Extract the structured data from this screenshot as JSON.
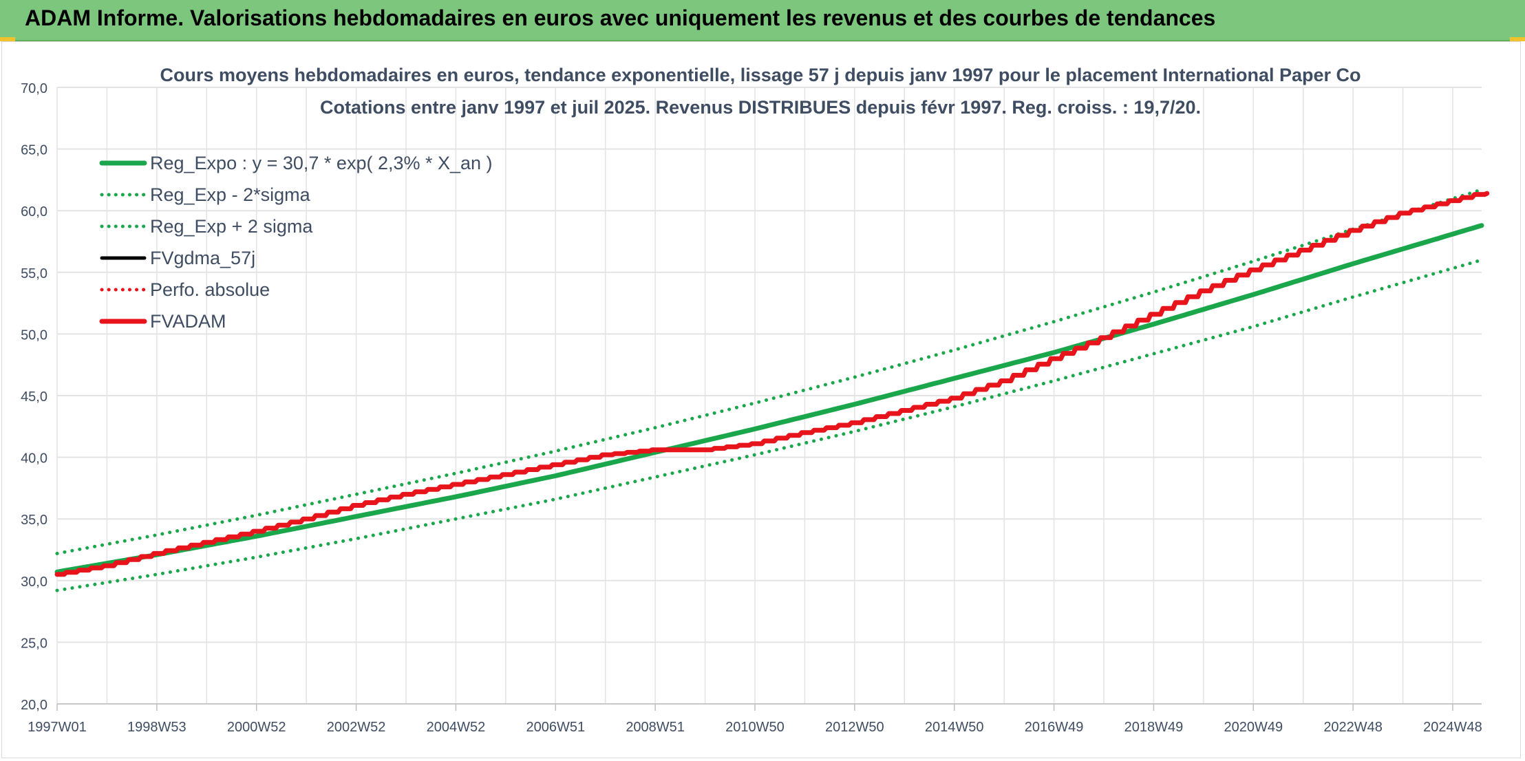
{
  "header": {
    "title": "ADAM Informe. Valorisations hebdomadaires en euros avec uniquement les revenus et des courbes de tendances"
  },
  "colors": {
    "banner": "#7dc67d",
    "reg_green": "#1aa64a",
    "fvadam_red": "#e8141c",
    "perf_red": "#e8141c",
    "fvgdma_black": "#000000",
    "grid": "#e3e3e3",
    "text": "#3f4d63"
  },
  "chart_data": {
    "type": "line",
    "title": "Cours moyens hebdomadaires en euros, tendance exponentielle, lissage 57 j depuis janv 1997 pour le placement International Paper Co",
    "subtitle": "Cotations entre janv 1997 et juil 2025. Revenus DISTRIBUES depuis févr 1997. Reg. croiss. : 19,7/20.",
    "xlabel": "",
    "ylabel": "",
    "ylim": [
      20,
      70
    ],
    "y_ticks": [
      "20,0",
      "25,0",
      "30,0",
      "35,0",
      "40,0",
      "45,0",
      "50,0",
      "55,0",
      "60,0",
      "65,0",
      "70,0"
    ],
    "x_tick_labels": [
      "1997W01",
      "1998W53",
      "2000W52",
      "2002W52",
      "2004W52",
      "2006W51",
      "2008W51",
      "2010W50",
      "2012W50",
      "2014W50",
      "2016W49",
      "2018W49",
      "2020W49",
      "2022W48",
      "2024W48"
    ],
    "x_range_years": [
      1997.0,
      2025.58
    ],
    "x_ticks_years": [
      1997.0,
      1999.0,
      2001.0,
      2003.0,
      2005.0,
      2007.0,
      2009.0,
      2011.0,
      2013.0,
      2015.0,
      2017.0,
      2019.0,
      2021.0,
      2023.0,
      2025.0
    ],
    "legend_position": "top-left",
    "grid": true,
    "series": [
      {
        "name": "Reg_Expo : y = 30,7 * exp( 2,3% *  X_an )",
        "style": "solid-thick",
        "color": "#1aa64a",
        "x": [
          1997,
          1999,
          2001,
          2003,
          2005,
          2007,
          2009,
          2011,
          2013,
          2015,
          2017,
          2019,
          2021,
          2023,
          2025.58
        ],
        "values": [
          30.7,
          32.1,
          33.6,
          35.2,
          36.8,
          38.5,
          40.4,
          42.3,
          44.3,
          46.4,
          48.5,
          50.8,
          53.2,
          55.7,
          58.8
        ]
      },
      {
        "name": "Reg_Exp - 2*sigma",
        "style": "dotted",
        "color": "#1aa64a",
        "x": [
          1997,
          1999,
          2001,
          2003,
          2005,
          2007,
          2009,
          2011,
          2013,
          2015,
          2017,
          2019,
          2021,
          2023,
          2025.58
        ],
        "values": [
          29.2,
          30.5,
          31.9,
          33.4,
          35.0,
          36.6,
          38.4,
          40.2,
          42.1,
          44.1,
          46.2,
          48.4,
          50.6,
          53.0,
          56.0
        ]
      },
      {
        "name": "Reg_Exp + 2 sigma",
        "style": "dotted",
        "color": "#1aa64a",
        "x": [
          1997,
          1999,
          2001,
          2003,
          2005,
          2007,
          2009,
          2011,
          2013,
          2015,
          2017,
          2019,
          2021,
          2023,
          2025.58
        ],
        "values": [
          32.2,
          33.7,
          35.3,
          37.0,
          38.7,
          40.5,
          42.4,
          44.4,
          46.5,
          48.7,
          51.0,
          53.4,
          55.9,
          58.5,
          61.7
        ]
      },
      {
        "name": "FVgdma_57j",
        "style": "solid",
        "color": "#000000",
        "x": [],
        "values": []
      },
      {
        "name": "Perfo. absolue",
        "style": "dotted",
        "color": "#e8141c",
        "x": [],
        "values": []
      },
      {
        "name": "FVADAM",
        "style": "solid-thick-stepped",
        "color": "#e8141c",
        "x": [
          1997,
          1998,
          1999,
          2000,
          2001,
          2002,
          2003,
          2004,
          2005,
          2006,
          2007,
          2008,
          2009,
          2010,
          2011,
          2012,
          2013,
          2014,
          2015,
          2016,
          2017,
          2018,
          2019,
          2020,
          2021,
          2022,
          2023,
          2024,
          2025.58
        ],
        "values": [
          30.5,
          31.2,
          32.2,
          33.1,
          34.0,
          35.0,
          36.1,
          37.0,
          37.8,
          38.6,
          39.4,
          40.2,
          40.6,
          40.6,
          41.1,
          42.0,
          42.8,
          43.8,
          44.8,
          46.2,
          48.0,
          49.7,
          51.6,
          53.5,
          55.2,
          56.8,
          58.4,
          59.8,
          61.4
        ]
      }
    ]
  }
}
